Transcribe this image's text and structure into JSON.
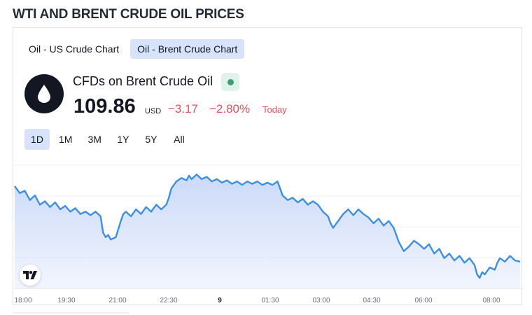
{
  "page": {
    "heading": "WTI AND BRENT CRUDE OIL PRICES"
  },
  "tabs": [
    {
      "label": "Oil - US Crude Chart",
      "active": false
    },
    {
      "label": "Oil - Brent Crude Chart",
      "active": true
    }
  ],
  "symbol": {
    "name": "CFDs on Brent Crude Oil",
    "icon": "oil-drop-icon",
    "status": "market-open",
    "price": "109.86",
    "currency": "USD",
    "change": "−3.17",
    "change_pct": "−2.80%",
    "period": "Today"
  },
  "ranges": [
    {
      "label": "1D",
      "active": true
    },
    {
      "label": "1M",
      "active": false
    },
    {
      "label": "3M",
      "active": false
    },
    {
      "label": "1Y",
      "active": false
    },
    {
      "label": "5Y",
      "active": false
    },
    {
      "label": "All",
      "active": false
    }
  ],
  "colors": {
    "line": "#3d8fdf",
    "area": "#c9d8f8",
    "negative": "#e04f5f",
    "accent_bg": "#d6e3fa",
    "status": "#3b9f73"
  },
  "chart_data": {
    "type": "area",
    "x_ticks": [
      "18:00",
      "19:30",
      "21:00",
      "22:30",
      "9",
      "01:30",
      "03:00",
      "04:30",
      "06:00",
      "08:00"
    ],
    "x_ticks_bold": [
      "9"
    ],
    "points": [
      [
        0,
        0.82
      ],
      [
        0.01,
        0.76
      ],
      [
        0.02,
        0.78
      ],
      [
        0.03,
        0.7
      ],
      [
        0.04,
        0.74
      ],
      [
        0.05,
        0.66
      ],
      [
        0.06,
        0.69
      ],
      [
        0.07,
        0.64
      ],
      [
        0.08,
        0.68
      ],
      [
        0.09,
        0.62
      ],
      [
        0.1,
        0.65
      ],
      [
        0.11,
        0.6
      ],
      [
        0.12,
        0.63
      ],
      [
        0.13,
        0.58
      ],
      [
        0.14,
        0.6
      ],
      [
        0.15,
        0.57
      ],
      [
        0.16,
        0.6
      ],
      [
        0.17,
        0.56
      ],
      [
        0.175,
        0.42
      ],
      [
        0.18,
        0.38
      ],
      [
        0.185,
        0.4
      ],
      [
        0.19,
        0.36
      ],
      [
        0.2,
        0.38
      ],
      [
        0.205,
        0.45
      ],
      [
        0.21,
        0.52
      ],
      [
        0.215,
        0.58
      ],
      [
        0.22,
        0.6
      ],
      [
        0.23,
        0.56
      ],
      [
        0.24,
        0.62
      ],
      [
        0.25,
        0.58
      ],
      [
        0.26,
        0.64
      ],
      [
        0.27,
        0.6
      ],
      [
        0.28,
        0.66
      ],
      [
        0.29,
        0.62
      ],
      [
        0.3,
        0.66
      ],
      [
        0.305,
        0.72
      ],
      [
        0.31,
        0.8
      ],
      [
        0.32,
        0.86
      ],
      [
        0.33,
        0.89
      ],
      [
        0.34,
        0.87
      ],
      [
        0.345,
        0.91
      ],
      [
        0.35,
        0.88
      ],
      [
        0.36,
        0.92
      ],
      [
        0.37,
        0.88
      ],
      [
        0.38,
        0.9
      ],
      [
        0.39,
        0.86
      ],
      [
        0.4,
        0.88
      ],
      [
        0.41,
        0.85
      ],
      [
        0.42,
        0.87
      ],
      [
        0.43,
        0.84
      ],
      [
        0.44,
        0.86
      ],
      [
        0.45,
        0.83
      ],
      [
        0.46,
        0.86
      ],
      [
        0.47,
        0.84
      ],
      [
        0.48,
        0.86
      ],
      [
        0.49,
        0.83
      ],
      [
        0.5,
        0.85
      ],
      [
        0.51,
        0.83
      ],
      [
        0.52,
        0.86
      ],
      [
        0.525,
        0.8
      ],
      [
        0.53,
        0.74
      ],
      [
        0.54,
        0.7
      ],
      [
        0.55,
        0.72
      ],
      [
        0.56,
        0.68
      ],
      [
        0.57,
        0.71
      ],
      [
        0.58,
        0.66
      ],
      [
        0.59,
        0.69
      ],
      [
        0.6,
        0.66
      ],
      [
        0.61,
        0.6
      ],
      [
        0.62,
        0.56
      ],
      [
        0.625,
        0.5
      ],
      [
        0.63,
        0.46
      ],
      [
        0.64,
        0.52
      ],
      [
        0.65,
        0.58
      ],
      [
        0.66,
        0.62
      ],
      [
        0.67,
        0.57
      ],
      [
        0.68,
        0.62
      ],
      [
        0.69,
        0.58
      ],
      [
        0.7,
        0.55
      ],
      [
        0.71,
        0.5
      ],
      [
        0.72,
        0.54
      ],
      [
        0.73,
        0.48
      ],
      [
        0.74,
        0.52
      ],
      [
        0.75,
        0.46
      ],
      [
        0.755,
        0.4
      ],
      [
        0.76,
        0.34
      ],
      [
        0.765,
        0.3
      ],
      [
        0.77,
        0.26
      ],
      [
        0.78,
        0.3
      ],
      [
        0.79,
        0.35
      ],
      [
        0.8,
        0.32
      ],
      [
        0.81,
        0.28
      ],
      [
        0.82,
        0.32
      ],
      [
        0.83,
        0.24
      ],
      [
        0.84,
        0.28
      ],
      [
        0.85,
        0.2
      ],
      [
        0.86,
        0.24
      ],
      [
        0.87,
        0.18
      ],
      [
        0.88,
        0.22
      ],
      [
        0.89,
        0.16
      ],
      [
        0.9,
        0.2
      ],
      [
        0.91,
        0.14
      ],
      [
        0.915,
        0.06
      ],
      [
        0.92,
        0.03
      ],
      [
        0.925,
        0.08
      ],
      [
        0.93,
        0.06
      ],
      [
        0.94,
        0.12
      ],
      [
        0.95,
        0.1
      ],
      [
        0.955,
        0.16
      ],
      [
        0.96,
        0.2
      ],
      [
        0.97,
        0.17
      ],
      [
        0.98,
        0.22
      ],
      [
        0.99,
        0.18
      ],
      [
        1.0,
        0.17
      ]
    ]
  }
}
